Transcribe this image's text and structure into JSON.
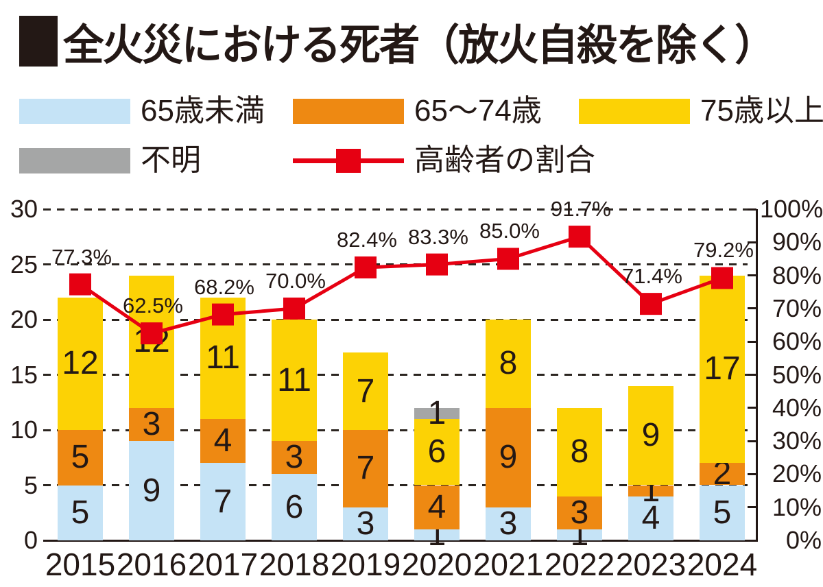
{
  "title": {
    "marker": "■",
    "text": "全火災における死者（放火自殺を除く）"
  },
  "legend": {
    "items": [
      {
        "label": "65歳未満",
        "color": "#c5e3f6",
        "type": "swatch"
      },
      {
        "label": "65〜74歳",
        "color": "#ee8912",
        "type": "swatch"
      },
      {
        "label": "75歳以上",
        "color": "#fcd205",
        "type": "swatch"
      },
      {
        "label": "不明",
        "color": "#a5a6a6",
        "type": "swatch"
      },
      {
        "label": "高齢者の割合",
        "color": "#e60012",
        "type": "line-marker"
      }
    ]
  },
  "chart_data": {
    "type": "bar",
    "subtype": "stacked-bars-with-percentage-line",
    "categories": [
      "2015",
      "2016",
      "2017",
      "2018",
      "2019",
      "2020",
      "2021",
      "2022",
      "2023",
      "2024"
    ],
    "series": [
      {
        "key": "under-65",
        "name": "65歳未満",
        "color": "#c5e3f6",
        "values": [
          5,
          9,
          7,
          6,
          3,
          1,
          3,
          1,
          4,
          5
        ]
      },
      {
        "key": "65-74",
        "name": "65〜74歳",
        "color": "#ee8912",
        "values": [
          5,
          3,
          4,
          3,
          7,
          4,
          9,
          3,
          1,
          2
        ]
      },
      {
        "key": "over-75",
        "name": "75歳以上",
        "color": "#fcd205",
        "values": [
          12,
          12,
          11,
          11,
          7,
          6,
          8,
          8,
          9,
          17
        ]
      },
      {
        "key": "unknown",
        "name": "不明",
        "color": "#a5a6a6",
        "values": [
          0,
          0,
          0,
          0,
          0,
          1,
          0,
          0,
          0,
          0
        ]
      }
    ],
    "totals": [
      22,
      24,
      22,
      20,
      17,
      12,
      20,
      12,
      14,
      24
    ],
    "line_series": {
      "key": "elderly-ratio",
      "name": "高齢者の割合",
      "color": "#e60012",
      "values_percent": [
        77.3,
        62.5,
        68.2,
        70.0,
        82.4,
        83.3,
        85.0,
        91.7,
        71.4,
        79.2
      ],
      "labels": [
        "77.3%",
        "62.5%",
        "68.2%",
        "70.0%",
        "82.4%",
        "83.3%",
        "85.0%",
        "91.7%",
        "71.4%",
        "79.2%"
      ]
    },
    "left_axis": {
      "min": 0,
      "max": 30,
      "tick_step": 5,
      "ticks": [
        "0",
        "5",
        "10",
        "15",
        "20",
        "25",
        "30"
      ]
    },
    "right_axis": {
      "min": 0,
      "max": 100,
      "tick_step": 10,
      "ticks": [
        "0%",
        "10%",
        "20%",
        "30%",
        "40%",
        "50%",
        "60%",
        "70%",
        "80%",
        "90%",
        "100%"
      ]
    },
    "grid": "dashed horizontal lines at every 5 on left axis",
    "legend_position": "top"
  },
  "colors": {
    "text": "#231815",
    "grid": "#2b2520",
    "axis": "#231815",
    "accent_red": "#e60012"
  }
}
